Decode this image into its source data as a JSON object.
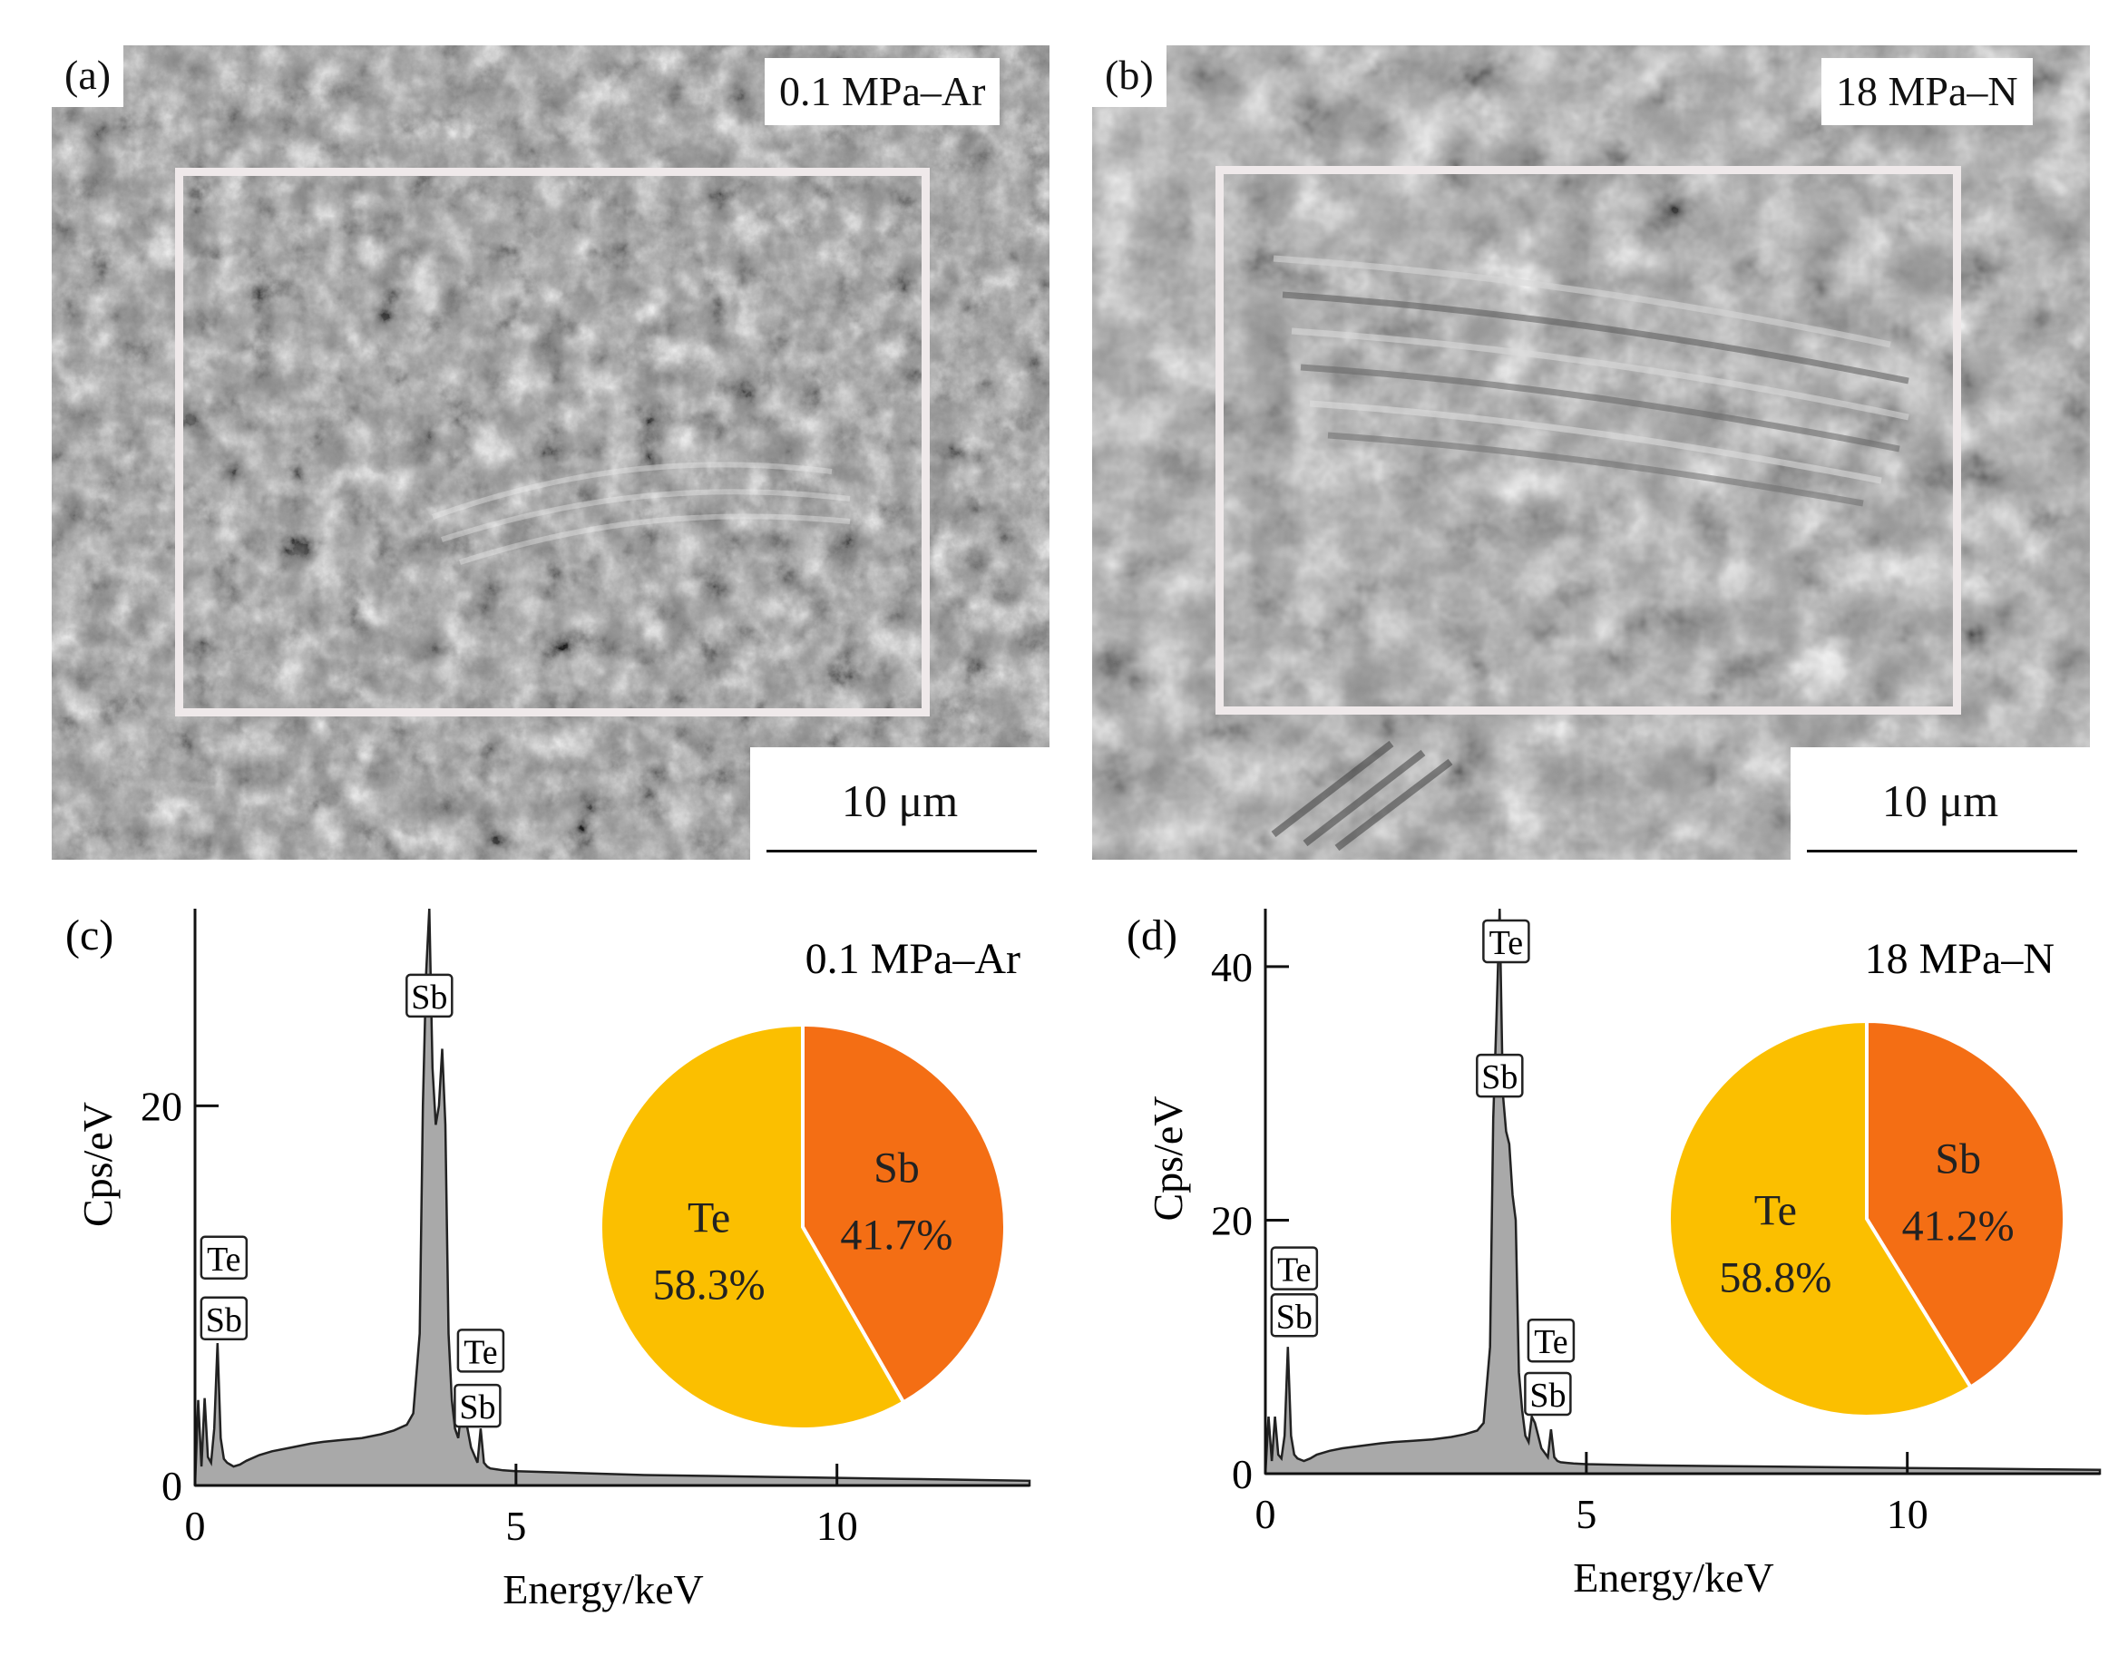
{
  "panels": {
    "a": {
      "label": "(a)",
      "condition": "0.1 MPa–Ar",
      "scale": "10 μm"
    },
    "b": {
      "label": "(b)",
      "condition": "18 MPa–N",
      "scale": "10 μm"
    }
  },
  "colors": {
    "te": "#fbbf00",
    "sb": "#f46e14",
    "spectrum_fill": "#a9a9a9",
    "axis": "#111111"
  },
  "chart_data": [
    {
      "type": "area",
      "panel": "(c)",
      "condition": "0.1 MPa–Ar",
      "xlabel": "Energy/keV",
      "ylabel": "Cps/eV",
      "xlim": [
        0,
        13
      ],
      "ylim": [
        0,
        30
      ],
      "xticks": [
        0,
        5,
        10
      ],
      "yticks": [
        0,
        20
      ],
      "spectrum": {
        "x": [
          0.0,
          0.05,
          0.1,
          0.15,
          0.2,
          0.25,
          0.3,
          0.35,
          0.4,
          0.45,
          0.5,
          0.55,
          0.6,
          0.7,
          0.8,
          1.0,
          1.2,
          1.5,
          1.8,
          2.0,
          2.3,
          2.6,
          2.9,
          3.1,
          3.3,
          3.4,
          3.5,
          3.55,
          3.6,
          3.65,
          3.7,
          3.75,
          3.8,
          3.85,
          3.9,
          3.95,
          4.0,
          4.05,
          4.1,
          4.15,
          4.2,
          4.3,
          4.4,
          4.45,
          4.5,
          4.55,
          4.6,
          4.7,
          4.8,
          5.0,
          6.0,
          7.0,
          8.0,
          9.0,
          10.0,
          11.0,
          12.0,
          13.0
        ],
        "y": [
          0,
          4.5,
          1.0,
          4.6,
          1.5,
          1.2,
          3.0,
          7.5,
          2.5,
          1.4,
          1.2,
          1.1,
          1.0,
          1.1,
          1.3,
          1.6,
          1.8,
          2.0,
          2.2,
          2.3,
          2.4,
          2.5,
          2.7,
          2.9,
          3.2,
          3.8,
          8.0,
          20.0,
          27.0,
          36.0,
          22.0,
          19.0,
          20.0,
          23.0,
          19.0,
          8.0,
          4.5,
          3.0,
          2.5,
          4.0,
          3.8,
          2.0,
          1.2,
          3.0,
          1.2,
          1.0,
          0.9,
          0.85,
          0.8,
          0.75,
          0.65,
          0.55,
          0.5,
          0.45,
          0.4,
          0.35,
          0.3,
          0.25
        ]
      },
      "peak_labels": [
        {
          "text": "Te",
          "x": 0.45,
          "y": 12.0
        },
        {
          "text": "Sb",
          "x": 0.45,
          "y": 8.8
        },
        {
          "text": "Te",
          "x": 3.75,
          "y": 33.5
        },
        {
          "text": "Sb",
          "x": 3.65,
          "y": 25.8
        },
        {
          "text": "Te",
          "x": 4.45,
          "y": 7.1
        },
        {
          "text": "Sb",
          "x": 4.4,
          "y": 4.2
        }
      ],
      "pie": [
        {
          "name": "Sb",
          "value": 41.7,
          "label": "41.7%"
        },
        {
          "name": "Te",
          "value": 58.3,
          "label": "58.3%"
        }
      ]
    },
    {
      "type": "area",
      "panel": "(d)",
      "condition": "18 MPa–N",
      "xlabel": "Energy/keV",
      "ylabel": "Cps/eV",
      "xlim": [
        0,
        13
      ],
      "ylim": [
        0,
        44
      ],
      "xticks": [
        0,
        5,
        10
      ],
      "yticks": [
        0,
        20,
        40
      ],
      "spectrum": {
        "x": [
          0.0,
          0.05,
          0.1,
          0.15,
          0.2,
          0.25,
          0.3,
          0.35,
          0.4,
          0.45,
          0.5,
          0.55,
          0.6,
          0.7,
          0.8,
          1.0,
          1.2,
          1.5,
          1.8,
          2.0,
          2.3,
          2.6,
          2.9,
          3.1,
          3.3,
          3.4,
          3.5,
          3.55,
          3.6,
          3.65,
          3.7,
          3.75,
          3.8,
          3.85,
          3.9,
          3.95,
          4.0,
          4.05,
          4.1,
          4.15,
          4.2,
          4.3,
          4.4,
          4.45,
          4.5,
          4.55,
          4.6,
          4.7,
          4.8,
          5.0,
          6.0,
          7.0,
          8.0,
          9.0,
          10.0,
          11.0,
          12.0,
          13.0
        ],
        "y": [
          0,
          4.5,
          1.0,
          4.5,
          1.5,
          1.2,
          3.0,
          10.0,
          3.0,
          1.5,
          1.2,
          1.1,
          1.0,
          1.2,
          1.5,
          1.8,
          2.0,
          2.2,
          2.4,
          2.5,
          2.6,
          2.7,
          2.9,
          3.1,
          3.4,
          4.0,
          10.0,
          28.0,
          36.0,
          45.0,
          30.0,
          27.0,
          26.0,
          22.0,
          20.0,
          8.0,
          5.0,
          3.0,
          2.5,
          4.5,
          4.0,
          2.0,
          1.3,
          3.5,
          1.3,
          1.0,
          0.9,
          0.85,
          0.8,
          0.75,
          0.65,
          0.6,
          0.55,
          0.5,
          0.45,
          0.4,
          0.35,
          0.3
        ]
      },
      "peak_labels": [
        {
          "text": "Te",
          "x": 0.45,
          "y": 16.2
        },
        {
          "text": "Sb",
          "x": 0.45,
          "y": 12.5
        },
        {
          "text": "Te",
          "x": 3.75,
          "y": 42.0
        },
        {
          "text": "Sb",
          "x": 3.65,
          "y": 31.4
        },
        {
          "text": "Te",
          "x": 4.45,
          "y": 10.5
        },
        {
          "text": "Sb",
          "x": 4.4,
          "y": 6.3
        }
      ],
      "pie": [
        {
          "name": "Sb",
          "value": 41.2,
          "label": "41.2%"
        },
        {
          "name": "Te",
          "value": 58.8,
          "label": "58.8%"
        }
      ]
    }
  ]
}
